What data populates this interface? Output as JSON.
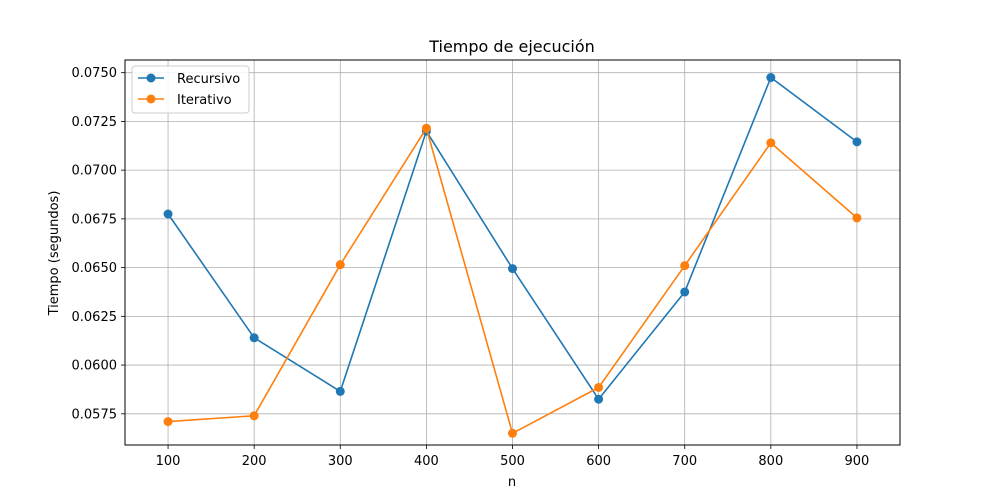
{
  "chart_data": {
    "type": "line",
    "title": "Tiempo de ejecución",
    "xlabel": "n",
    "ylabel": "Tiempo (segundos)",
    "x": [
      100,
      200,
      300,
      400,
      500,
      600,
      700,
      800,
      900
    ],
    "xlim": [
      50,
      950
    ],
    "ylim": [
      0.0559,
      0.07565
    ],
    "xticks": [
      100,
      200,
      300,
      400,
      500,
      600,
      700,
      800,
      900
    ],
    "yticks": [
      0.0575,
      0.06,
      0.0625,
      0.065,
      0.0675,
      0.07,
      0.0725,
      0.075
    ],
    "ytick_labels": [
      "0.0575",
      "0.0600",
      "0.0625",
      "0.0650",
      "0.0675",
      "0.0700",
      "0.0725",
      "0.0750"
    ],
    "grid": true,
    "legend_position": "top-left",
    "series": [
      {
        "name": "Recursivo",
        "color": "#1f77b4",
        "marker": "circle",
        "values": [
          0.06775,
          0.0614,
          0.05865,
          0.072,
          0.06495,
          0.05825,
          0.06375,
          0.07475,
          0.07145
        ]
      },
      {
        "name": "Iterativo",
        "color": "#ff7f0e",
        "marker": "circle",
        "values": [
          0.0571,
          0.0574,
          0.06515,
          0.07215,
          0.0565,
          0.05885,
          0.0651,
          0.0714,
          0.06755
        ]
      }
    ]
  }
}
